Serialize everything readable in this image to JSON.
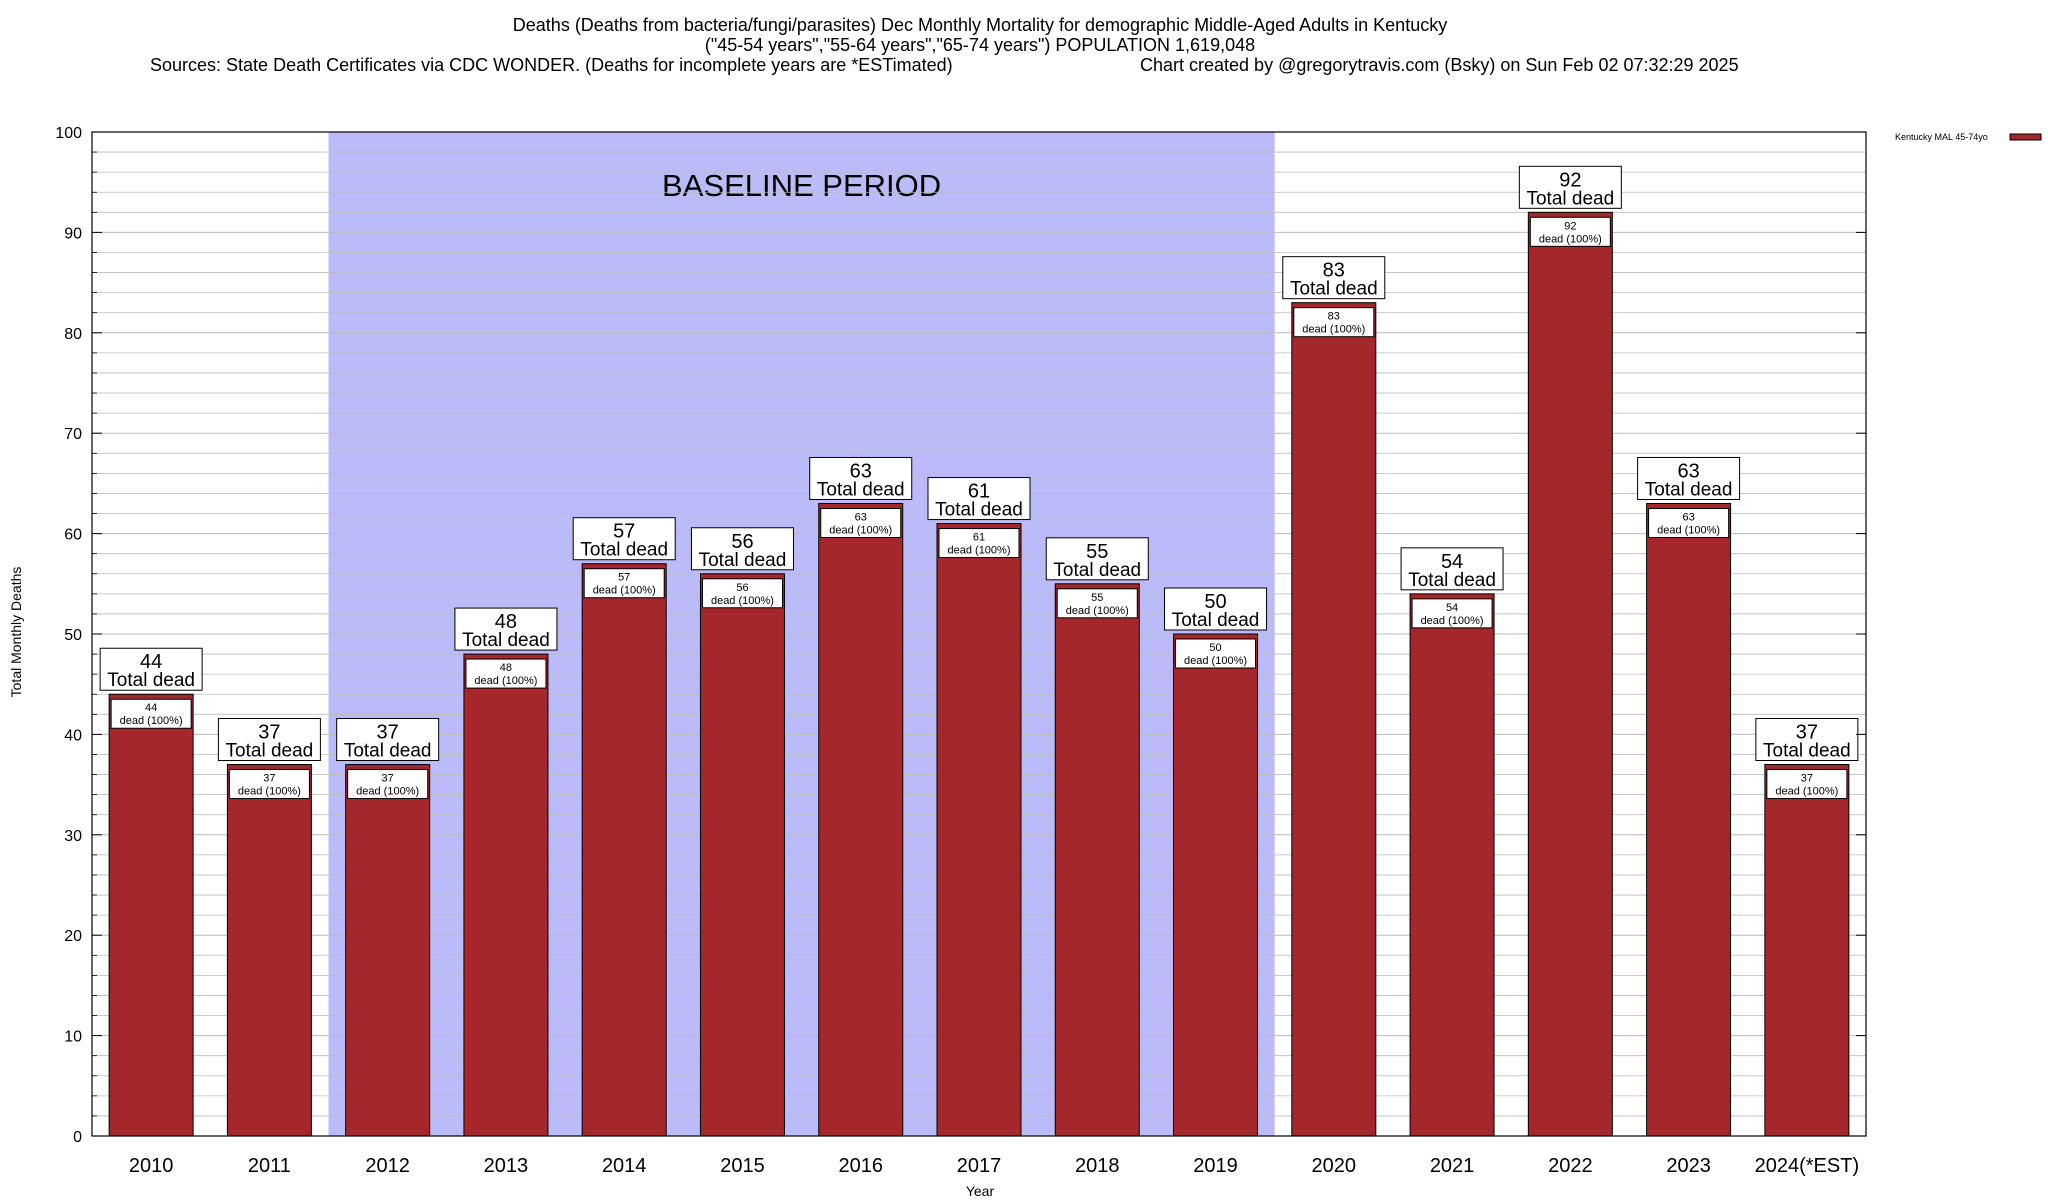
{
  "header": {
    "line1": "Deaths (Deaths from bacteria/fungi/parasites) Dec Monthly Mortality for demographic Middle-Aged Adults in Kentucky",
    "line2": "(\"45-54 years\",\"55-64 years\",\"65-74 years\") POPULATION 1,619,048",
    "line3_left": "Sources: State Death Certificates via CDC WONDER. (Deaths for incomplete years are *ESTimated)",
    "line3_right": "Chart created by @gregorytravis.com (Bsky) on Sun Feb 02 07:32:29 2025"
  },
  "legend": {
    "label": "Kentucky MAL 45-74yo"
  },
  "baseline": {
    "label": "BASELINE PERIOD",
    "start": "2012",
    "end": "2019"
  },
  "colors": {
    "bar": "#a4282b",
    "baseline": "#bbbbf9",
    "grid": "#bbbbbb",
    "axis": "#000000"
  },
  "chart_data": {
    "type": "bar",
    "title": "Deaths (Deaths from bacteria/fungi/parasites) Dec Monthly Mortality for demographic Middle-Aged Adults in Kentucky",
    "xlabel": "Year",
    "ylabel": "Total Monthly Deaths",
    "ylim": [
      0,
      100
    ],
    "yticks": [
      0,
      10,
      20,
      30,
      40,
      50,
      60,
      70,
      80,
      90,
      100
    ],
    "categories": [
      "2010",
      "2011",
      "2012",
      "2013",
      "2014",
      "2015",
      "2016",
      "2017",
      "2018",
      "2019",
      "2020",
      "2021",
      "2022",
      "2023",
      "2024(*EST)"
    ],
    "series": [
      {
        "name": "Kentucky MAL 45-74yo",
        "values": [
          44,
          37,
          37,
          48,
          57,
          56,
          63,
          61,
          55,
          50,
          83,
          54,
          92,
          63,
          37
        ]
      }
    ],
    "top_label_suffix": "Total dead",
    "inner_label_suffix": "dead (100%)"
  }
}
